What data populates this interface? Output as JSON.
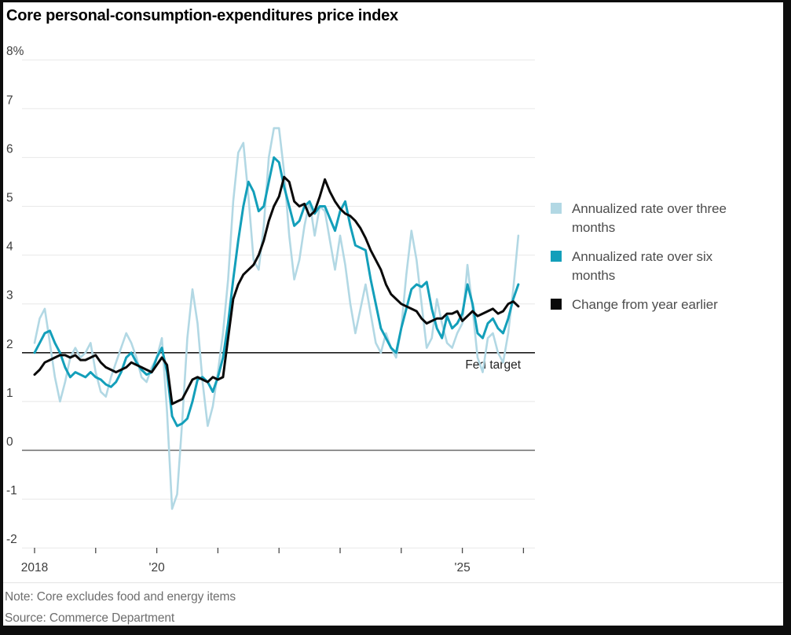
{
  "page": {
    "title": "Core personal-consumption-expenditures price index"
  },
  "legend": {
    "items": [
      {
        "label": "Annualized rate over three months",
        "color": "#b2d8e4"
      },
      {
        "label": "Annualized rate over six months",
        "color": "#139fba"
      },
      {
        "label": "Change from year earlier",
        "color": "#0a0a0a"
      }
    ]
  },
  "footer": {
    "note": "Note: Core excludes food and energy items",
    "source": "Source: Commerce Department"
  },
  "chart_data": {
    "type": "line",
    "title": "Core personal-consumption-expenditures price index",
    "x_unit": "month",
    "x_start": "2018-01",
    "x_step_months": 1,
    "xlim_years": [
      2018,
      2026.2
    ],
    "ylim": [
      -2,
      8
    ],
    "grid": "horizontal",
    "legend_position": "right",
    "y_ticks": [
      {
        "v": 8,
        "label": "8%"
      },
      {
        "v": 7,
        "label": "7"
      },
      {
        "v": 6,
        "label": "6"
      },
      {
        "v": 5,
        "label": "5"
      },
      {
        "v": 4,
        "label": "4"
      },
      {
        "v": 3,
        "label": "3"
      },
      {
        "v": 2,
        "label": "2"
      },
      {
        "v": 1,
        "label": "1"
      },
      {
        "v": 0,
        "label": "0"
      },
      {
        "v": -1,
        "label": "-1"
      },
      {
        "v": -2,
        "label": "-2"
      }
    ],
    "x_ticks": [
      {
        "year": 2018,
        "label": "2018"
      },
      {
        "year": 2019,
        "label": ""
      },
      {
        "year": 2020,
        "label": "'20"
      },
      {
        "year": 2021,
        "label": ""
      },
      {
        "year": 2022,
        "label": ""
      },
      {
        "year": 2023,
        "label": ""
      },
      {
        "year": 2024,
        "label": ""
      },
      {
        "year": 2025,
        "label": "'25"
      },
      {
        "year": 2026,
        "label": ""
      }
    ],
    "ref_lines": {
      "fed_target": {
        "value": 2,
        "label": "Fed target"
      },
      "zero": {
        "value": 0
      }
    },
    "series": [
      {
        "name": "Annualized rate over three months",
        "color": "#b2d8e4",
        "width": 2.6,
        "values": [
          2.2,
          2.7,
          2.9,
          2.2,
          1.5,
          1.0,
          1.4,
          1.9,
          2.1,
          1.9,
          2.0,
          2.2,
          1.6,
          1.2,
          1.1,
          1.5,
          1.8,
          2.1,
          2.4,
          2.2,
          1.9,
          1.5,
          1.4,
          1.7,
          1.9,
          2.3,
          0.8,
          -1.2,
          -0.9,
          0.6,
          2.3,
          3.3,
          2.6,
          1.4,
          0.5,
          0.9,
          1.6,
          2.4,
          3.5,
          5.1,
          6.1,
          6.3,
          5.2,
          3.9,
          3.7,
          4.6,
          6.0,
          6.6,
          6.6,
          5.7,
          4.4,
          3.5,
          3.9,
          4.6,
          5.1,
          4.4,
          5.0,
          4.9,
          4.3,
          3.7,
          4.4,
          3.8,
          3.0,
          2.4,
          2.9,
          3.4,
          2.8,
          2.2,
          2.0,
          2.4,
          2.1,
          1.9,
          2.5,
          3.6,
          4.5,
          3.9,
          3.0,
          2.1,
          2.3,
          3.1,
          2.6,
          2.2,
          2.1,
          2.4,
          2.6,
          3.8,
          2.9,
          1.9,
          1.6,
          2.3,
          2.4,
          2.0,
          1.8,
          2.4,
          3.3,
          4.4
        ]
      },
      {
        "name": "Annualized rate over six months",
        "color": "#139fba",
        "width": 3,
        "values": [
          2.0,
          2.2,
          2.4,
          2.45,
          2.2,
          2.0,
          1.7,
          1.5,
          1.6,
          1.55,
          1.5,
          1.6,
          1.5,
          1.45,
          1.35,
          1.3,
          1.4,
          1.6,
          1.9,
          2.0,
          1.8,
          1.65,
          1.55,
          1.6,
          1.9,
          2.1,
          1.6,
          0.7,
          0.5,
          0.55,
          0.65,
          1.0,
          1.45,
          1.5,
          1.4,
          1.2,
          1.5,
          1.9,
          2.6,
          3.5,
          4.3,
          5.0,
          5.5,
          5.3,
          4.9,
          5.0,
          5.5,
          6.0,
          5.9,
          5.4,
          5.0,
          4.6,
          4.7,
          5.0,
          5.1,
          4.85,
          5.0,
          5.0,
          4.75,
          4.5,
          4.9,
          5.1,
          4.6,
          4.2,
          4.15,
          4.1,
          3.5,
          3.0,
          2.5,
          2.3,
          2.1,
          2.0,
          2.5,
          2.9,
          3.3,
          3.4,
          3.35,
          3.45,
          2.9,
          2.5,
          2.3,
          2.75,
          2.5,
          2.6,
          2.8,
          3.4,
          3.0,
          2.4,
          2.3,
          2.6,
          2.7,
          2.5,
          2.4,
          2.7,
          3.1,
          3.4
        ]
      },
      {
        "name": "Change from year earlier",
        "color": "#0a0a0a",
        "width": 3,
        "values": [
          1.55,
          1.65,
          1.8,
          1.85,
          1.9,
          1.95,
          1.95,
          1.9,
          1.95,
          1.85,
          1.85,
          1.9,
          1.95,
          1.8,
          1.7,
          1.65,
          1.6,
          1.65,
          1.7,
          1.8,
          1.75,
          1.7,
          1.65,
          1.6,
          1.75,
          1.9,
          1.75,
          0.95,
          1.0,
          1.05,
          1.25,
          1.45,
          1.5,
          1.45,
          1.4,
          1.5,
          1.45,
          1.5,
          2.3,
          3.1,
          3.4,
          3.6,
          3.7,
          3.8,
          4.0,
          4.3,
          4.7,
          5.0,
          5.2,
          5.6,
          5.5,
          5.1,
          5.0,
          5.05,
          4.8,
          4.9,
          5.2,
          5.55,
          5.3,
          5.1,
          4.95,
          4.85,
          4.8,
          4.7,
          4.55,
          4.35,
          4.1,
          3.9,
          3.7,
          3.4,
          3.2,
          3.1,
          3.0,
          2.95,
          2.9,
          2.85,
          2.7,
          2.6,
          2.65,
          2.7,
          2.7,
          2.8,
          2.8,
          2.85,
          2.65,
          2.75,
          2.85,
          2.75,
          2.8,
          2.85,
          2.9,
          2.8,
          2.85,
          3.0,
          3.05,
          2.95
        ]
      }
    ]
  }
}
